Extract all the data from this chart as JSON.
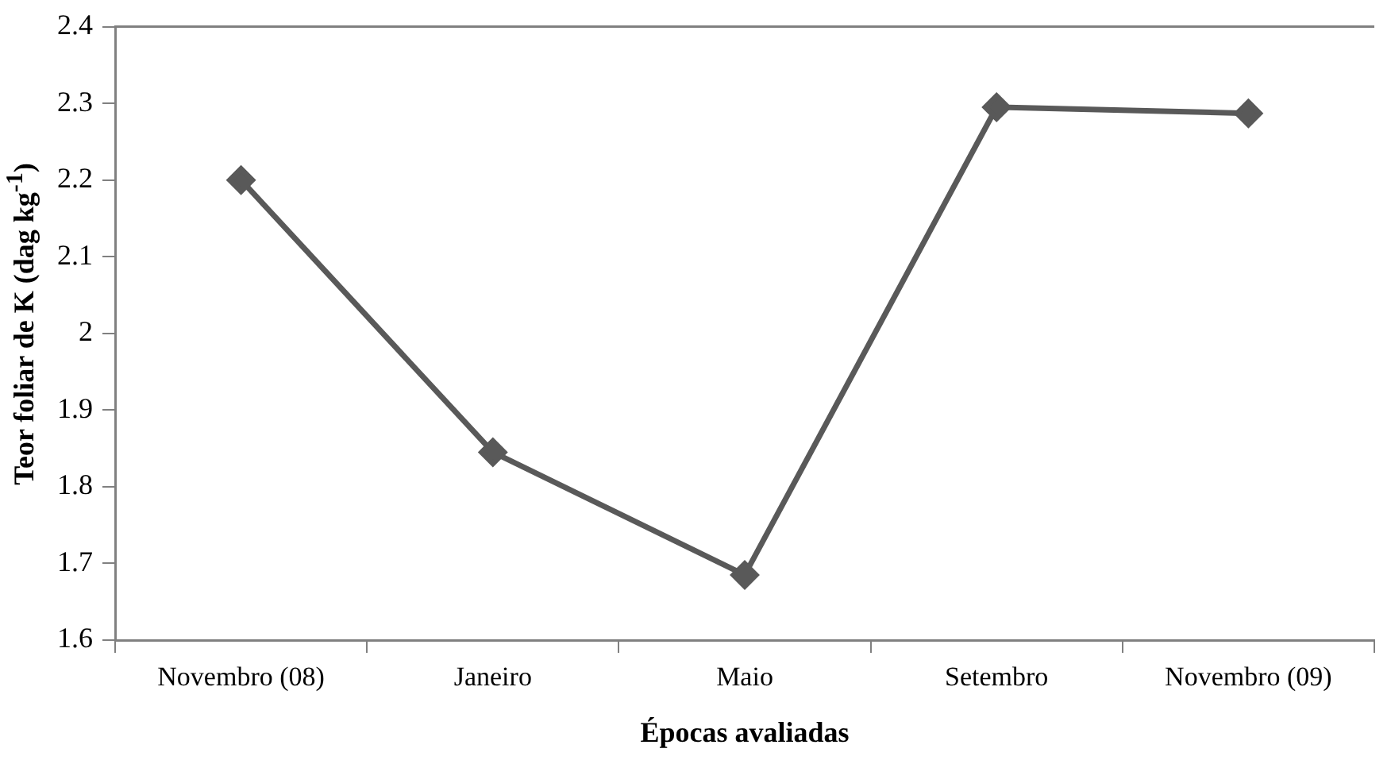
{
  "chart_data": {
    "type": "line",
    "xlabel": "Épocas avaliadas",
    "ylabel": "Teor foliar de K (dag kg$^{-1}$)",
    "categories": [
      "Novembro (08)",
      "Janeiro",
      "Maio",
      "Setembro",
      "Novembro (09)"
    ],
    "series": [
      {
        "color": "#595959",
        "values": [
          2.2,
          1.845,
          1.685,
          2.295,
          2.287
        ]
      }
    ],
    "ylim": [
      1.6,
      2.4
    ],
    "yticks": [
      1.6,
      1.7,
      1.8,
      1.9,
      2,
      2.1,
      2.2,
      2.3,
      2.4
    ],
    "grid": false,
    "legend": false,
    "marker": "diamond",
    "line_style": "solid"
  }
}
